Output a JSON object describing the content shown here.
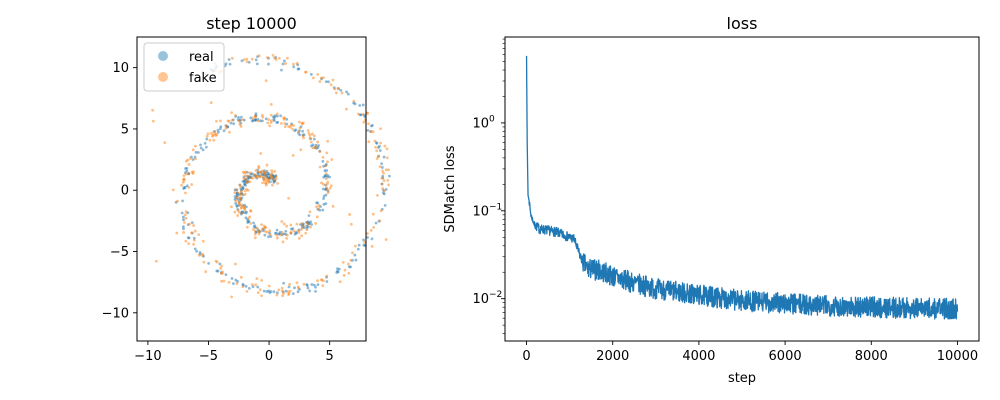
{
  "chart_data": [
    {
      "type": "scatter",
      "title": "step 10000",
      "xlabel": "",
      "ylabel": "",
      "xlim": [
        -10.9,
        8.0
      ],
      "ylim": [
        -12.3,
        12.5
      ],
      "xticks": [
        -10,
        -5,
        0,
        5
      ],
      "yticks": [
        -10,
        -5,
        0,
        5,
        10
      ],
      "legend": {
        "position": "top-left",
        "entries": [
          "real",
          "fake"
        ]
      },
      "grid": false,
      "series": [
        {
          "name": "real",
          "color": "#1f77b4",
          "alpha": 0.5,
          "generator": {
            "kind": "spiral",
            "theta_range_rad": [
              1.0,
              14.7
            ],
            "r_per_rad": 0.75,
            "noise": 0.2,
            "n": 420,
            "seed": 11
          }
        },
        {
          "name": "fake",
          "color": "#ff7f0e",
          "alpha": 0.5,
          "generator": {
            "kind": "spiral",
            "theta_range_rad": [
              1.0,
              14.7
            ],
            "r_per_rad": 0.75,
            "noise": 0.35,
            "n": 420,
            "outlier_fraction": 0.08,
            "seed": 29
          }
        }
      ]
    },
    {
      "type": "line",
      "title": "loss",
      "xlabel": "step",
      "ylabel": "SDMatch loss",
      "xlim": [
        -500,
        10500
      ],
      "ylim": [
        0.0033,
        9.5
      ],
      "yscale": "log",
      "xticks": [
        0,
        2000,
        4000,
        6000,
        8000,
        10000
      ],
      "yticks": [
        {
          "value": 0.01,
          "label": "10",
          "exp": "−2"
        },
        {
          "value": 0.1,
          "label": "10",
          "exp": "−1"
        },
        {
          "value": 1,
          "label": "10",
          "exp": "0"
        }
      ],
      "grid": false,
      "series": [
        {
          "name": "",
          "color": "#1f77b4",
          "keypoints": [
            [
              0,
              5.8
            ],
            [
              15,
              0.6
            ],
            [
              35,
              0.15
            ],
            [
              60,
              0.13
            ],
            [
              100,
              0.09
            ],
            [
              180,
              0.07
            ],
            [
              300,
              0.062
            ],
            [
              500,
              0.06
            ],
            [
              700,
              0.057
            ],
            [
              900,
              0.052
            ],
            [
              1100,
              0.048
            ],
            [
              1250,
              0.03
            ],
            [
              1400,
              0.022
            ],
            [
              1700,
              0.021
            ],
            [
              2000,
              0.018
            ],
            [
              2500,
              0.015
            ],
            [
              3000,
              0.013
            ],
            [
              4000,
              0.011
            ],
            [
              5000,
              0.0095
            ],
            [
              6000,
              0.0088
            ],
            [
              7000,
              0.0083
            ],
            [
              8000,
              0.008
            ],
            [
              9000,
              0.0078
            ],
            [
              10000,
              0.0076
            ]
          ],
          "noise": {
            "band_factor": 0.55,
            "n_points": 1600,
            "seed": 7
          }
        }
      ]
    }
  ]
}
